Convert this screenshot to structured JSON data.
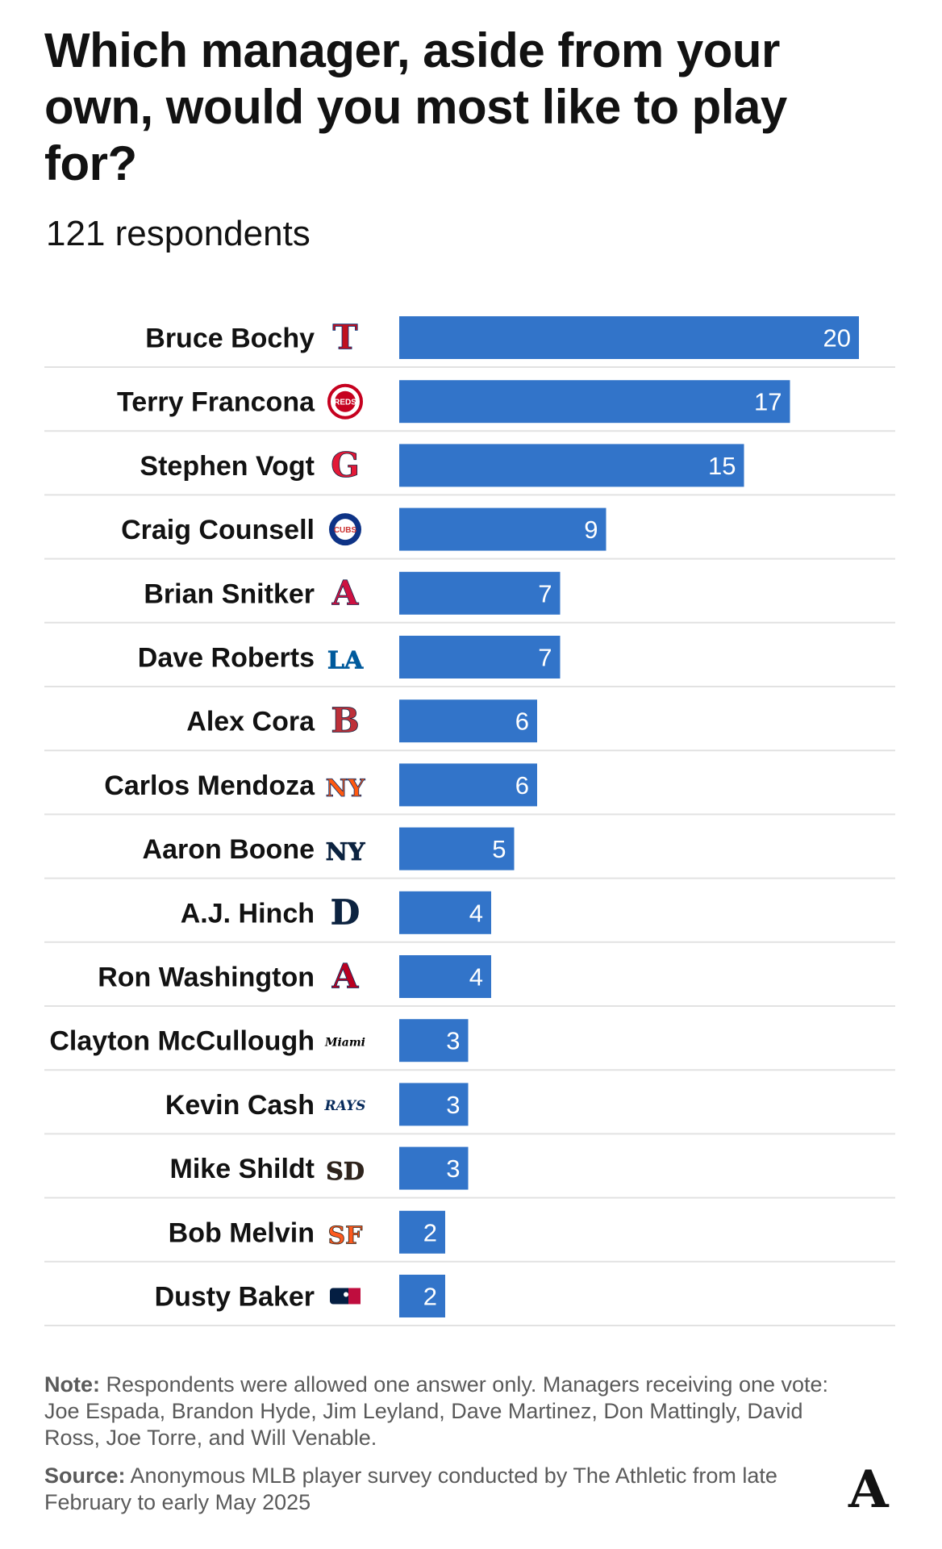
{
  "header": {
    "title": "Which manager, aside from your own, would you most like to play for?",
    "subtitle": "121 respondents"
  },
  "chart_data": {
    "type": "bar",
    "orientation": "horizontal",
    "title": "Which manager, aside from your own, would you most like to play for?",
    "subtitle": "121 respondents",
    "categories": [
      "Bruce Bochy",
      "Terry Francona",
      "Stephen Vogt",
      "Craig Counsell",
      "Brian Snitker",
      "Dave Roberts",
      "Alex Cora",
      "Carlos Mendoza",
      "Aaron Boone",
      "A.J. Hinch",
      "Ron Washington",
      "Clayton McCullough",
      "Kevin Cash",
      "Mike Shildt",
      "Bob Melvin",
      "Dusty Baker"
    ],
    "values": [
      20,
      17,
      15,
      9,
      7,
      7,
      6,
      6,
      5,
      4,
      4,
      3,
      3,
      3,
      2,
      2
    ],
    "teams": [
      {
        "logo": "rangers-logo",
        "mark": "T",
        "color": "#c0111f",
        "accent": "#003278"
      },
      {
        "logo": "reds-logo",
        "mark": "REDS",
        "color": "#c6011f",
        "accent": "#ffffff"
      },
      {
        "logo": "guardians-logo",
        "mark": "G",
        "color": "#e31937",
        "accent": "#0c2340"
      },
      {
        "logo": "cubs-logo",
        "mark": "CUBS",
        "color": "#0e3386",
        "accent": "#cc3433"
      },
      {
        "logo": "braves-logo",
        "mark": "A",
        "color": "#ce1141",
        "accent": "#13274f"
      },
      {
        "logo": "dodgers-logo",
        "mark": "LA",
        "color": "#005a9c",
        "accent": "#005a9c"
      },
      {
        "logo": "red-sox-logo",
        "mark": "B",
        "color": "#bd3039",
        "accent": "#0c2340"
      },
      {
        "logo": "mets-logo",
        "mark": "NY",
        "color": "#ff5910",
        "accent": "#002d72"
      },
      {
        "logo": "yankees-logo",
        "mark": "NY",
        "color": "#0c2340",
        "accent": "#0c2340"
      },
      {
        "logo": "tigers-logo",
        "mark": "D",
        "color": "#0c2340",
        "accent": "#0c2340"
      },
      {
        "logo": "angels-logo",
        "mark": "A",
        "color": "#ba0021",
        "accent": "#003263"
      },
      {
        "logo": "marlins-logo",
        "mark": "Miami",
        "color": "#000000",
        "accent": "#00a3e0"
      },
      {
        "logo": "rays-logo",
        "mark": "RAYS",
        "color": "#092c5c",
        "accent": "#8fbce6"
      },
      {
        "logo": "padres-logo",
        "mark": "SD",
        "color": "#2f241d",
        "accent": "#2f241d"
      },
      {
        "logo": "giants-logo",
        "mark": "SF",
        "color": "#fd5a1e",
        "accent": "#27251f"
      },
      {
        "logo": "mlb-logo",
        "mark": "MLB",
        "color": "#041e42",
        "accent": "#bf0d3e"
      }
    ],
    "xlim": [
      0,
      20
    ],
    "bar_color": "#3274c9",
    "grid": false,
    "legend": "none"
  },
  "note": {
    "label": "Note:",
    "text": "Respondents were allowed one answer only. Managers receiving one vote: Joe Espada, Brandon Hyde, Jim Leyland, Dave Martinez, Don Mattingly, David Ross, Joe Torre, and Will Venable."
  },
  "source": {
    "label": "Source:",
    "text": "Anonymous MLB player survey conducted by The Athletic from late February to early May 2025"
  },
  "brand": {
    "mark": "A",
    "icon": "the-athletic-logo"
  }
}
